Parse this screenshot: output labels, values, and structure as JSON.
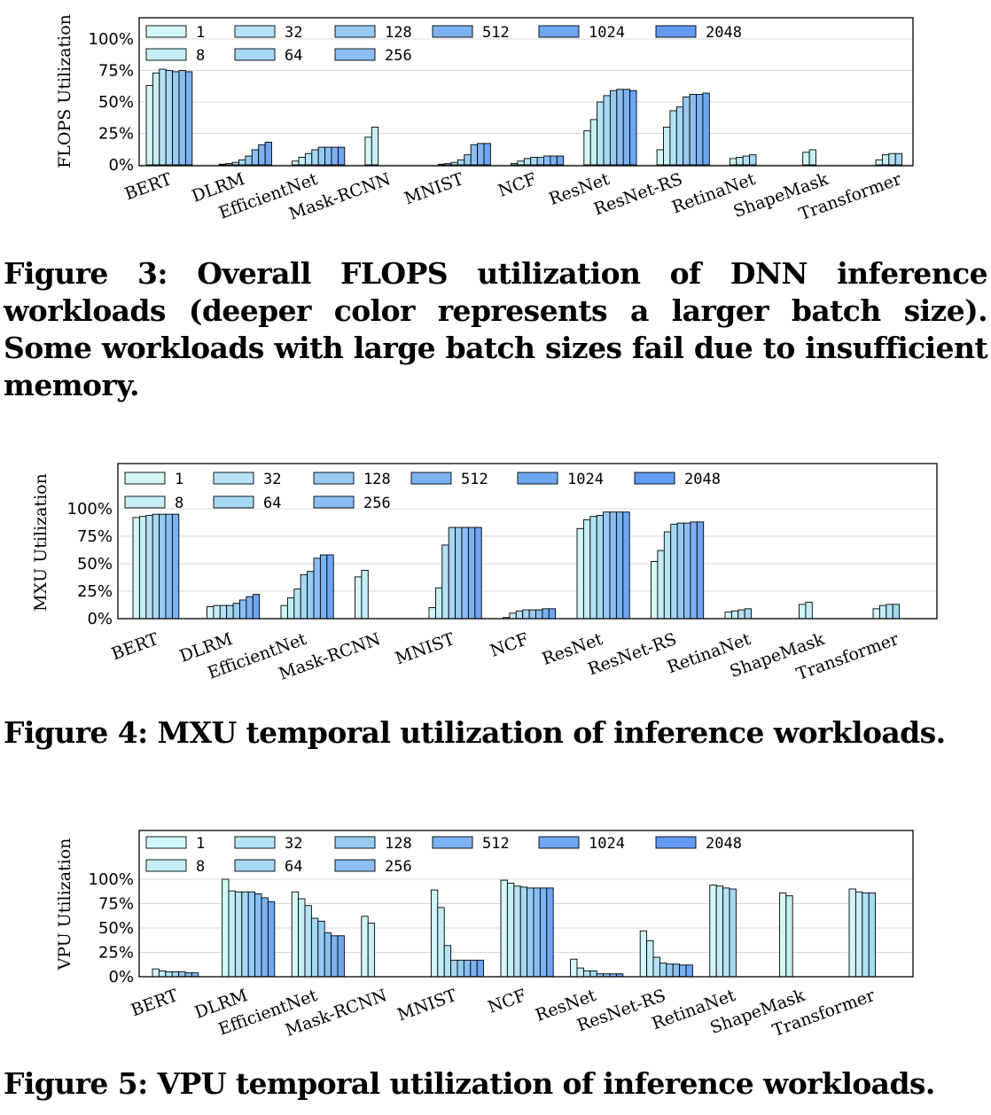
{
  "figures": [
    {
      "caption": "Figure 3: Overall FLOPS utilization of DNN inference workloads (deeper color represents a larger batch size). Some workloads with large batch sizes fail due to insufficient memory."
    },
    {
      "caption": "Figure 4: MXU temporal utilization of inference workloads."
    },
    {
      "caption": "Figure 5: VPU temporal utilization of inference workloads."
    }
  ],
  "chart_data": [
    {
      "type": "bar",
      "ylabel": "FLOPS Utilization",
      "ylim": [
        0,
        100
      ],
      "yticks": [
        "0%",
        "25%",
        "50%",
        "75%",
        "100%"
      ],
      "legend_location": "top",
      "categories": [
        "BERT",
        "DLRM",
        "EfficientNet",
        "Mask-RCNN",
        "MNIST",
        "NCF",
        "ResNet",
        "ResNet-RS",
        "RetinaNet",
        "ShapeMask",
        "Transformer"
      ],
      "series": [
        {
          "name": "1",
          "color": "#d3f6f9",
          "values": [
            63,
            0.5,
            3,
            22,
            0.5,
            1,
            27,
            12,
            5,
            10,
            4
          ]
        },
        {
          "name": "8",
          "color": "#c5eef7",
          "values": [
            73,
            1,
            6,
            30,
            1,
            3,
            36,
            30,
            6,
            12,
            8
          ]
        },
        {
          "name": "32",
          "color": "#b5e3f5",
          "values": [
            76,
            2,
            9,
            null,
            2,
            5,
            50,
            43,
            7,
            null,
            9
          ]
        },
        {
          "name": "64",
          "color": "#a6d8f4",
          "values": [
            75,
            4,
            12,
            null,
            4,
            6,
            55,
            46,
            8,
            null,
            9
          ]
        },
        {
          "name": "128",
          "color": "#97cbf4",
          "values": [
            74,
            7,
            14,
            null,
            8,
            6,
            59,
            54,
            null,
            null,
            null
          ]
        },
        {
          "name": "256",
          "color": "#89bff4",
          "values": [
            75,
            12,
            14,
            null,
            16,
            7,
            60,
            56,
            null,
            null,
            null
          ]
        },
        {
          "name": "512",
          "color": "#7bb2f3",
          "values": [
            74,
            16,
            14,
            null,
            17,
            7,
            60,
            56,
            null,
            null,
            null
          ]
        },
        {
          "name": "1024",
          "color": "#6ea6f2",
          "values": [
            null,
            18,
            14,
            null,
            17,
            7,
            59,
            57,
            null,
            null,
            null
          ]
        },
        {
          "name": "2048",
          "color": "#629bf1",
          "values": [
            null,
            null,
            null,
            null,
            null,
            null,
            null,
            null,
            null,
            null,
            null
          ]
        }
      ]
    },
    {
      "type": "bar",
      "ylabel": "MXU Utilization",
      "ylim": [
        0,
        100
      ],
      "yticks": [
        "0%",
        "25%",
        "50%",
        "75%",
        "100%"
      ],
      "legend_location": "top",
      "categories": [
        "BERT",
        "DLRM",
        "EfficientNet",
        "Mask-RCNN",
        "MNIST",
        "NCF",
        "ResNet",
        "ResNet-RS",
        "RetinaNet",
        "ShapeMask",
        "Transformer"
      ],
      "series": [
        {
          "name": "1",
          "color": "#d3f6f9",
          "values": [
            92,
            11,
            12,
            38,
            10,
            1,
            82,
            52,
            6,
            13,
            9
          ]
        },
        {
          "name": "8",
          "color": "#c5eef7",
          "values": [
            93,
            12,
            19,
            44,
            28,
            5,
            90,
            62,
            7,
            15,
            12
          ]
        },
        {
          "name": "32",
          "color": "#b5e3f5",
          "values": [
            94,
            12,
            27,
            null,
            67,
            7,
            93,
            79,
            8,
            null,
            13
          ]
        },
        {
          "name": "64",
          "color": "#a6d8f4",
          "values": [
            95,
            12,
            40,
            null,
            83,
            8,
            94,
            86,
            9,
            null,
            13
          ]
        },
        {
          "name": "128",
          "color": "#97cbf4",
          "values": [
            95,
            14,
            43,
            null,
            83,
            8,
            97,
            87,
            null,
            null,
            null
          ]
        },
        {
          "name": "256",
          "color": "#89bff4",
          "values": [
            95,
            17,
            55,
            null,
            83,
            8,
            97,
            87,
            null,
            null,
            null
          ]
        },
        {
          "name": "512",
          "color": "#7bb2f3",
          "values": [
            95,
            20,
            58,
            null,
            83,
            9,
            97,
            88,
            null,
            null,
            null
          ]
        },
        {
          "name": "1024",
          "color": "#6ea6f2",
          "values": [
            null,
            22,
            58,
            null,
            83,
            9,
            97,
            88,
            null,
            null,
            null
          ]
        },
        {
          "name": "2048",
          "color": "#629bf1",
          "values": [
            null,
            null,
            null,
            null,
            null,
            null,
            null,
            null,
            null,
            null,
            null
          ]
        }
      ]
    },
    {
      "type": "bar",
      "ylabel": "VPU Utilization",
      "ylim": [
        0,
        100
      ],
      "yticks": [
        "0%",
        "25%",
        "50%",
        "75%",
        "100%"
      ],
      "legend_location": "top",
      "categories": [
        "BERT",
        "DLRM",
        "EfficientNet",
        "Mask-RCNN",
        "MNIST",
        "NCF",
        "ResNet",
        "ResNet-RS",
        "RetinaNet",
        "ShapeMask",
        "Transformer"
      ],
      "series": [
        {
          "name": "1",
          "color": "#d3f6f9",
          "values": [
            8,
            100,
            87,
            62,
            89,
            99,
            18,
            47,
            94,
            86,
            90
          ]
        },
        {
          "name": "8",
          "color": "#c5eef7",
          "values": [
            6,
            88,
            80,
            55,
            71,
            96,
            9,
            37,
            93,
            83,
            87
          ]
        },
        {
          "name": "32",
          "color": "#b5e3f5",
          "values": [
            5,
            87,
            73,
            null,
            32,
            93,
            6,
            20,
            91,
            null,
            86
          ]
        },
        {
          "name": "64",
          "color": "#a6d8f4",
          "values": [
            5,
            87,
            60,
            null,
            17,
            92,
            6,
            14,
            90,
            null,
            86
          ]
        },
        {
          "name": "128",
          "color": "#97cbf4",
          "values": [
            5,
            87,
            57,
            null,
            17,
            91,
            3,
            13,
            null,
            null,
            null
          ]
        },
        {
          "name": "256",
          "color": "#89bff4",
          "values": [
            4,
            85,
            45,
            null,
            17,
            91,
            3,
            13,
            null,
            null,
            null
          ]
        },
        {
          "name": "512",
          "color": "#7bb2f3",
          "values": [
            4,
            81,
            42,
            null,
            17,
            91,
            3,
            12,
            null,
            null,
            null
          ]
        },
        {
          "name": "1024",
          "color": "#6ea6f2",
          "values": [
            null,
            77,
            42,
            null,
            17,
            91,
            3,
            12,
            null,
            null,
            null
          ]
        },
        {
          "name": "2048",
          "color": "#629bf1",
          "values": [
            null,
            null,
            null,
            null,
            null,
            null,
            null,
            null,
            null,
            null,
            null
          ]
        }
      ]
    }
  ]
}
